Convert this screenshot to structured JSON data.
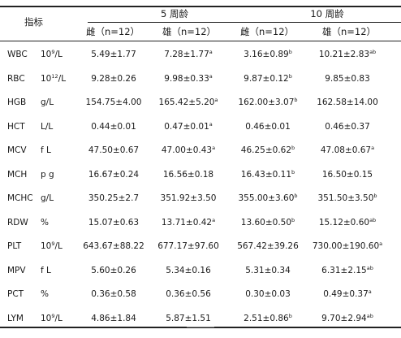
{
  "header": {
    "indicator": "指标",
    "group_5wk": "5 周龄",
    "group_10wk": "10 周龄",
    "col_labels": [
      "雌（n=12）",
      "雄（n=12）",
      "雌（n=12）",
      "雄（n=12）"
    ]
  },
  "rows": [
    {
      "name": "WBC",
      "unit_pre": "10",
      "unit_sup": "9",
      "unit_post": "/L",
      "vals": [
        {
          "v": "5.49±1.77",
          "s": ""
        },
        {
          "v": "7.28±1.77",
          "s": "a"
        },
        {
          "v": "3.16±0.89",
          "s": "b"
        },
        {
          "v": "10.21±2.83",
          "s": "ab"
        }
      ]
    },
    {
      "name": "RBC",
      "unit_pre": "10",
      "unit_sup": "12",
      "unit_post": "/L",
      "vals": [
        {
          "v": "9.28±0.26",
          "s": ""
        },
        {
          "v": "9.98±0.33",
          "s": "a"
        },
        {
          "v": "9.87±0.12",
          "s": "b"
        },
        {
          "v": "9.85±0.83",
          "s": ""
        }
      ]
    },
    {
      "name": "HGB",
      "unit_pre": "g/L",
      "unit_sup": "",
      "unit_post": "",
      "vals": [
        {
          "v": "154.75±4.00",
          "s": ""
        },
        {
          "v": "165.42±5.20",
          "s": "a"
        },
        {
          "v": "162.00±3.07",
          "s": "b"
        },
        {
          "v": "162.58±14.00",
          "s": ""
        }
      ]
    },
    {
      "name": "HCT",
      "unit_pre": "L/L",
      "unit_sup": "",
      "unit_post": "",
      "vals": [
        {
          "v": "0.44±0.01",
          "s": ""
        },
        {
          "v": "0.47±0.01",
          "s": "a"
        },
        {
          "v": "0.46±0.01",
          "s": ""
        },
        {
          "v": "0.46±0.37",
          "s": ""
        }
      ]
    },
    {
      "name": "MCV",
      "unit_pre": "f L",
      "unit_sup": "",
      "unit_post": "",
      "vals": [
        {
          "v": "47.50±0.67",
          "s": ""
        },
        {
          "v": "47.00±0.43",
          "s": "a"
        },
        {
          "v": "46.25±0.62",
          "s": "b"
        },
        {
          "v": "47.08±0.67",
          "s": "a"
        }
      ]
    },
    {
      "name": "MCH",
      "unit_pre": "p g",
      "unit_sup": "",
      "unit_post": "",
      "vals": [
        {
          "v": "16.67±0.24",
          "s": ""
        },
        {
          "v": "16.56±0.18",
          "s": ""
        },
        {
          "v": "16.43±0.11",
          "s": "b"
        },
        {
          "v": "16.50±0.15",
          "s": ""
        }
      ]
    },
    {
      "name": "MCHC",
      "unit_pre": "g/L",
      "unit_sup": "",
      "unit_post": "",
      "vals": [
        {
          "v": "350.25±2.7",
          "s": ""
        },
        {
          "v": "351.92±3.50",
          "s": ""
        },
        {
          "v": "355.00±3.60",
          "s": "b"
        },
        {
          "v": "351.50±3.50",
          "s": "b"
        }
      ]
    },
    {
      "name": "RDW",
      "unit_pre": "%",
      "unit_sup": "",
      "unit_post": "",
      "vals": [
        {
          "v": "15.07±0.63",
          "s": ""
        },
        {
          "v": "13.71±0.42",
          "s": "a"
        },
        {
          "v": "13.60±0.50",
          "s": "b"
        },
        {
          "v": "15.12±0.60",
          "s": "ab"
        }
      ]
    },
    {
      "name": "PLT",
      "unit_pre": "10",
      "unit_sup": "9",
      "unit_post": "/L",
      "vals": [
        {
          "v": "643.67±88.22",
          "s": ""
        },
        {
          "v": "677.17±97.60",
          "s": ""
        },
        {
          "v": "567.42±39.26",
          "s": ""
        },
        {
          "v": "730.00±190.60",
          "s": "a"
        }
      ]
    },
    {
      "name": "MPV",
      "unit_pre": "f L",
      "unit_sup": "",
      "unit_post": "",
      "vals": [
        {
          "v": "5.60±0.26",
          "s": ""
        },
        {
          "v": "5.34±0.16",
          "s": ""
        },
        {
          "v": "5.31±0.34",
          "s": ""
        },
        {
          "v": "6.31±2.15",
          "s": "ab"
        }
      ]
    },
    {
      "name": "PCT",
      "unit_pre": "%",
      "unit_sup": "",
      "unit_post": "",
      "vals": [
        {
          "v": "0.36±0.58",
          "s": ""
        },
        {
          "v": "0.36±0.56",
          "s": ""
        },
        {
          "v": "0.30±0.03",
          "s": ""
        },
        {
          "v": "0.49±0.37",
          "s": "a"
        }
      ]
    },
    {
      "name": "LYM",
      "unit_pre": "10",
      "unit_sup": "9",
      "unit_post": "/L",
      "vals": [
        {
          "v": "4.86±1.84",
          "s": ""
        },
        {
          "v": "5.87±1.51",
          "s": ""
        },
        {
          "v": "2.51±0.86",
          "s": "b"
        },
        {
          "v": "9.70±2.94",
          "s": "ab"
        }
      ]
    }
  ]
}
